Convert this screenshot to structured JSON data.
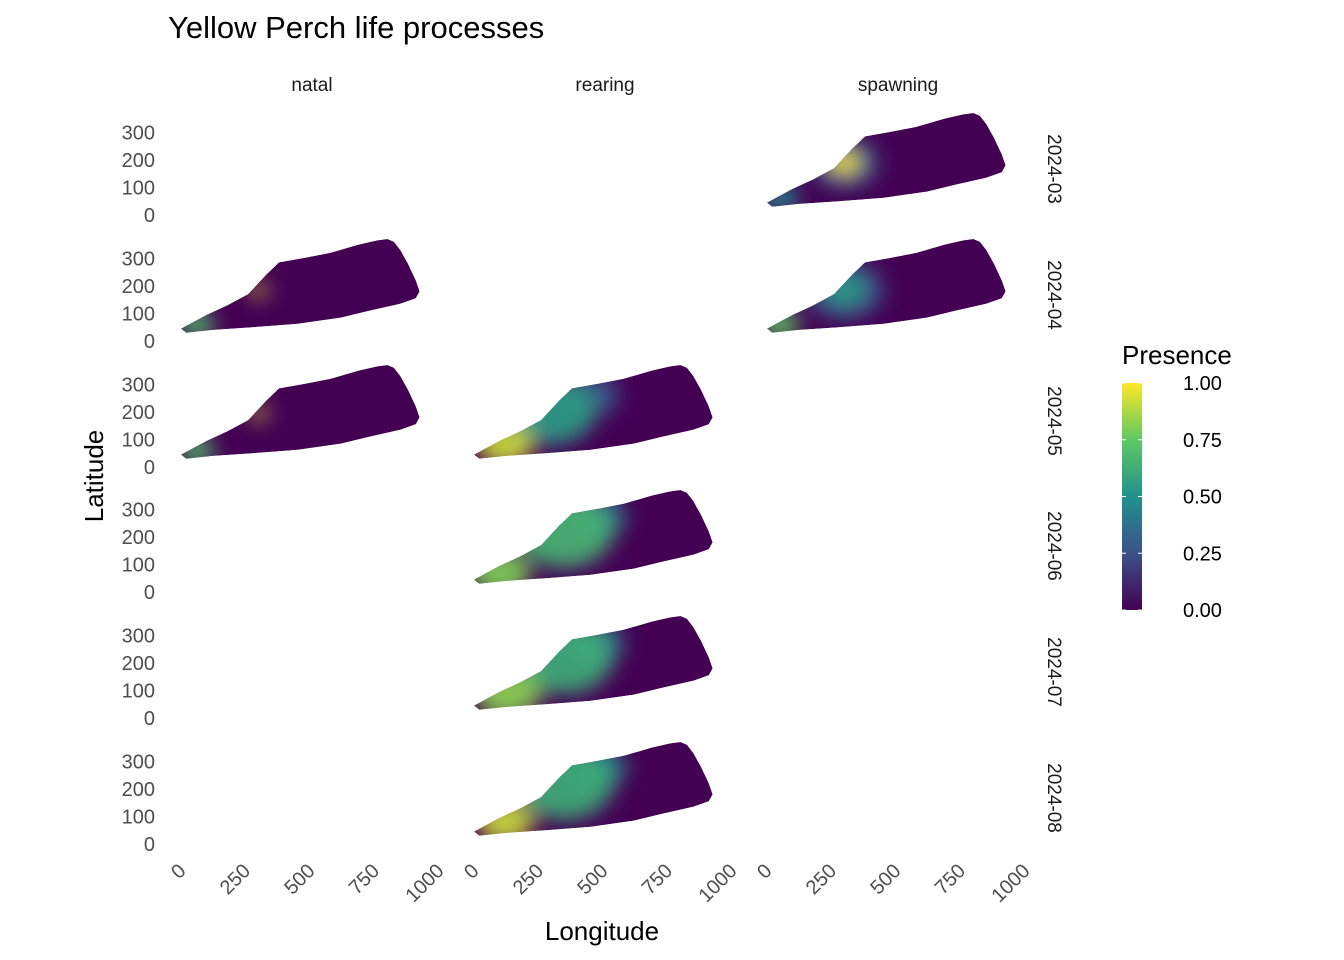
{
  "chart_data": {
    "type": "heatmap",
    "title": "Yellow Perch life processes",
    "xlabel": "Longitude",
    "ylabel": "Latitude",
    "xlim": [
      0,
      1000
    ],
    "ylim": [
      0,
      370
    ],
    "x_ticks": [
      "0",
      "250",
      "500",
      "750",
      "1000"
    ],
    "y_ticks": [
      "0",
      "100",
      "200",
      "300"
    ],
    "columns": [
      "natal",
      "rearing",
      "spawning"
    ],
    "rows": [
      "2024-03",
      "2024-04",
      "2024-05",
      "2024-06",
      "2024-07",
      "2024-08"
    ],
    "legend": {
      "title": "Presence",
      "position": "right",
      "ticks": [
        "0.00",
        "0.25",
        "0.50",
        "0.75",
        "1.00"
      ],
      "colormap": [
        "#440154",
        "#3b528b",
        "#21918c",
        "#5ec962",
        "#fde725"
      ]
    },
    "panels": [
      {
        "column": "spawning",
        "row": "2024-03",
        "hotspots": [
          {
            "x": 300,
            "y": 190,
            "radius": 60,
            "value": 1.0
          },
          {
            "x": 300,
            "y": 190,
            "radius": 130,
            "value": 0.35
          },
          {
            "x": 50,
            "y": 60,
            "radius": 75,
            "value": 0.45
          }
        ]
      },
      {
        "column": "natal",
        "row": "2024-04",
        "hotspots": [
          {
            "x": 300,
            "y": 185,
            "radius": 35,
            "value": 0.95
          },
          {
            "x": 60,
            "y": 60,
            "radius": 70,
            "value": 0.7
          }
        ]
      },
      {
        "column": "spawning",
        "row": "2024-04",
        "hotspots": [
          {
            "x": 300,
            "y": 185,
            "radius": 80,
            "value": 0.55
          },
          {
            "x": 300,
            "y": 185,
            "radius": 150,
            "value": 0.3
          },
          {
            "x": 50,
            "y": 60,
            "radius": 75,
            "value": 0.75
          }
        ]
      },
      {
        "column": "natal",
        "row": "2024-05",
        "hotspots": [
          {
            "x": 300,
            "y": 195,
            "radius": 35,
            "value": 0.95
          },
          {
            "x": 60,
            "y": 60,
            "radius": 70,
            "value": 0.7
          }
        ]
      },
      {
        "column": "rearing",
        "row": "2024-05",
        "hotspots": [
          {
            "x": 120,
            "y": 80,
            "radius": 110,
            "value": 0.92
          },
          {
            "x": 300,
            "y": 200,
            "radius": 170,
            "value": 0.55
          },
          {
            "x": 450,
            "y": 260,
            "radius": 110,
            "value": 0.3
          }
        ]
      },
      {
        "column": "rearing",
        "row": "2024-06",
        "hotspots": [
          {
            "x": 100,
            "y": 70,
            "radius": 120,
            "value": 0.8
          },
          {
            "x": 350,
            "y": 220,
            "radius": 190,
            "value": 0.65
          },
          {
            "x": 480,
            "y": 270,
            "radius": 110,
            "value": 0.4
          }
        ]
      },
      {
        "column": "rearing",
        "row": "2024-07",
        "hotspots": [
          {
            "x": 130,
            "y": 90,
            "radius": 130,
            "value": 0.82
          },
          {
            "x": 350,
            "y": 220,
            "radius": 190,
            "value": 0.62
          },
          {
            "x": 470,
            "y": 270,
            "radius": 110,
            "value": 0.42
          }
        ]
      },
      {
        "column": "rearing",
        "row": "2024-08",
        "hotspots": [
          {
            "x": 120,
            "y": 80,
            "radius": 110,
            "value": 0.92
          },
          {
            "x": 350,
            "y": 220,
            "radius": 190,
            "value": 0.62
          },
          {
            "x": 480,
            "y": 275,
            "radius": 110,
            "value": 0.45
          }
        ]
      }
    ]
  }
}
